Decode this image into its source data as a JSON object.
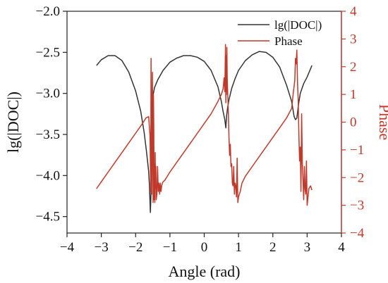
{
  "chart_data": {
    "type": "line",
    "xlabel": "Angle (rad)",
    "ylabel_left": "lg(|DOC|)",
    "ylabel_right": "Phase",
    "xlim": [
      -4,
      4
    ],
    "ylim_left": [
      -4.7,
      -2.0
    ],
    "ylim_right": [
      -4,
      4
    ],
    "xticks": [
      -4,
      -3,
      -2,
      -1,
      0,
      1,
      2,
      3,
      4
    ],
    "yticks_left": [
      -4.5,
      -4.0,
      -3.5,
      -3.0,
      -2.5,
      -2.0
    ],
    "yticks_right": [
      -4,
      -3,
      -2,
      -1,
      0,
      1,
      2,
      3,
      4
    ],
    "grid": false,
    "legend_position": "top-right",
    "colors": {
      "left": "#333333",
      "right": "#c0392b"
    },
    "series": [
      {
        "name": "lg(|DOC|)",
        "axis": "left",
        "color": "#333333",
        "x": [
          -3.14,
          -3.0,
          -2.8,
          -2.6,
          -2.4,
          -2.2,
          -2.0,
          -1.85,
          -1.75,
          -1.68,
          -1.62,
          -1.6,
          -1.57,
          -1.55,
          -1.54,
          -1.52,
          -1.49,
          -1.45,
          -1.35,
          -1.2,
          -1.0,
          -0.8,
          -0.6,
          -0.4,
          -0.2,
          0.0,
          0.2,
          0.4,
          0.5,
          0.55,
          0.6,
          0.63,
          0.65,
          0.68,
          0.72,
          0.8,
          0.9,
          1.0,
          1.2,
          1.4,
          1.6,
          1.8,
          2.0,
          2.2,
          2.4,
          2.55,
          2.62,
          2.66,
          2.7,
          2.75,
          2.8,
          2.9,
          3.0,
          3.14
        ],
        "y": [
          -2.66,
          -2.59,
          -2.54,
          -2.54,
          -2.6,
          -2.74,
          -2.97,
          -3.22,
          -3.48,
          -3.72,
          -3.95,
          -4.1,
          -4.45,
          -4.2,
          -3.3,
          -3.15,
          -3.02,
          -2.93,
          -2.83,
          -2.72,
          -2.62,
          -2.57,
          -2.54,
          -2.54,
          -2.56,
          -2.61,
          -2.72,
          -2.92,
          -3.1,
          -3.22,
          -3.32,
          -3.42,
          -3.28,
          -3.18,
          -3.08,
          -2.94,
          -2.82,
          -2.72,
          -2.6,
          -2.53,
          -2.49,
          -2.5,
          -2.56,
          -2.68,
          -2.9,
          -3.1,
          -3.28,
          -3.32,
          -3.3,
          -3.13,
          -3.0,
          -2.88,
          -2.8,
          -2.66
        ]
      },
      {
        "name": "Phase",
        "axis": "right",
        "color": "#c0392b",
        "x": [
          -3.14,
          -3.0,
          -2.8,
          -2.6,
          -2.4,
          -2.2,
          -2.0,
          -1.8,
          -1.7,
          -1.62,
          -1.58,
          -1.56,
          -1.55,
          -1.54,
          -1.53,
          -1.52,
          -1.51,
          -1.5,
          -1.49,
          -1.48,
          -1.47,
          -1.46,
          -1.45,
          -1.44,
          -1.43,
          -1.42,
          -1.41,
          -1.4,
          -1.38,
          -1.36,
          -1.34,
          -1.32,
          -1.3,
          -1.28,
          -1.26,
          -1.24,
          -1.22,
          -1.2,
          -1.15,
          -1.1,
          -1.0,
          -0.8,
          -0.6,
          -0.4,
          -0.2,
          0.0,
          0.2,
          0.4,
          0.5,
          0.55,
          0.58,
          0.6,
          0.62,
          0.63,
          0.64,
          0.65,
          0.66,
          0.67,
          0.68,
          0.7,
          0.72,
          0.74,
          0.76,
          0.78,
          0.8,
          0.82,
          0.84,
          0.86,
          0.88,
          0.9,
          0.92,
          0.94,
          0.96,
          0.98,
          1.0,
          1.05,
          1.1,
          1.2,
          1.4,
          1.6,
          1.8,
          2.0,
          2.2,
          2.4,
          2.55,
          2.6,
          2.64,
          2.66,
          2.68,
          2.7,
          2.72,
          2.74,
          2.76,
          2.78,
          2.8,
          2.82,
          2.84,
          2.86,
          2.88,
          2.9,
          2.92,
          2.94,
          2.96,
          2.98,
          3.0,
          3.05,
          3.1,
          3.14
        ],
        "y": [
          -2.4,
          -2.15,
          -1.8,
          -1.45,
          -1.1,
          -0.75,
          -0.4,
          -0.05,
          0.15,
          0.2,
          -0.5,
          -2.5,
          2.3,
          -1.2,
          -2.6,
          0.5,
          1.8,
          -0.6,
          -2.9,
          1.0,
          -0.3,
          -2.8,
          -1.5,
          -2.9,
          -1.1,
          -2.4,
          -1.6,
          -2.8,
          -2.6,
          -1.6,
          -2.5,
          -2.2,
          -2.6,
          -2.2,
          -2.5,
          -2.3,
          -2.2,
          -2.15,
          -2.1,
          -2.0,
          -1.8,
          -1.45,
          -1.1,
          -0.75,
          -0.4,
          -0.05,
          0.3,
          0.75,
          1.0,
          1.2,
          1.6,
          1.1,
          2.8,
          0.7,
          2.4,
          1.0,
          2.7,
          1.6,
          1.2,
          0.5,
          -0.5,
          -1.2,
          -0.8,
          -1.6,
          -1.5,
          -2.2,
          -2.3,
          -1.6,
          -2.6,
          -2.2,
          -2.3,
          -2.7,
          -1.3,
          -2.9,
          -2.7,
          -2.5,
          -2.2,
          -1.95,
          -1.6,
          -1.25,
          -0.9,
          -0.55,
          -0.2,
          0.15,
          0.5,
          1.1,
          1.5,
          2.3,
          2.1,
          2.6,
          1.4,
          0.8,
          -0.5,
          -1.4,
          -0.9,
          -2.5,
          0.3,
          -1.5,
          -2.1,
          -2.8,
          -1.6,
          -2.4,
          -2.6,
          -1.4,
          -3.0,
          -2.4,
          -2.3,
          -2.45
        ]
      }
    ]
  }
}
